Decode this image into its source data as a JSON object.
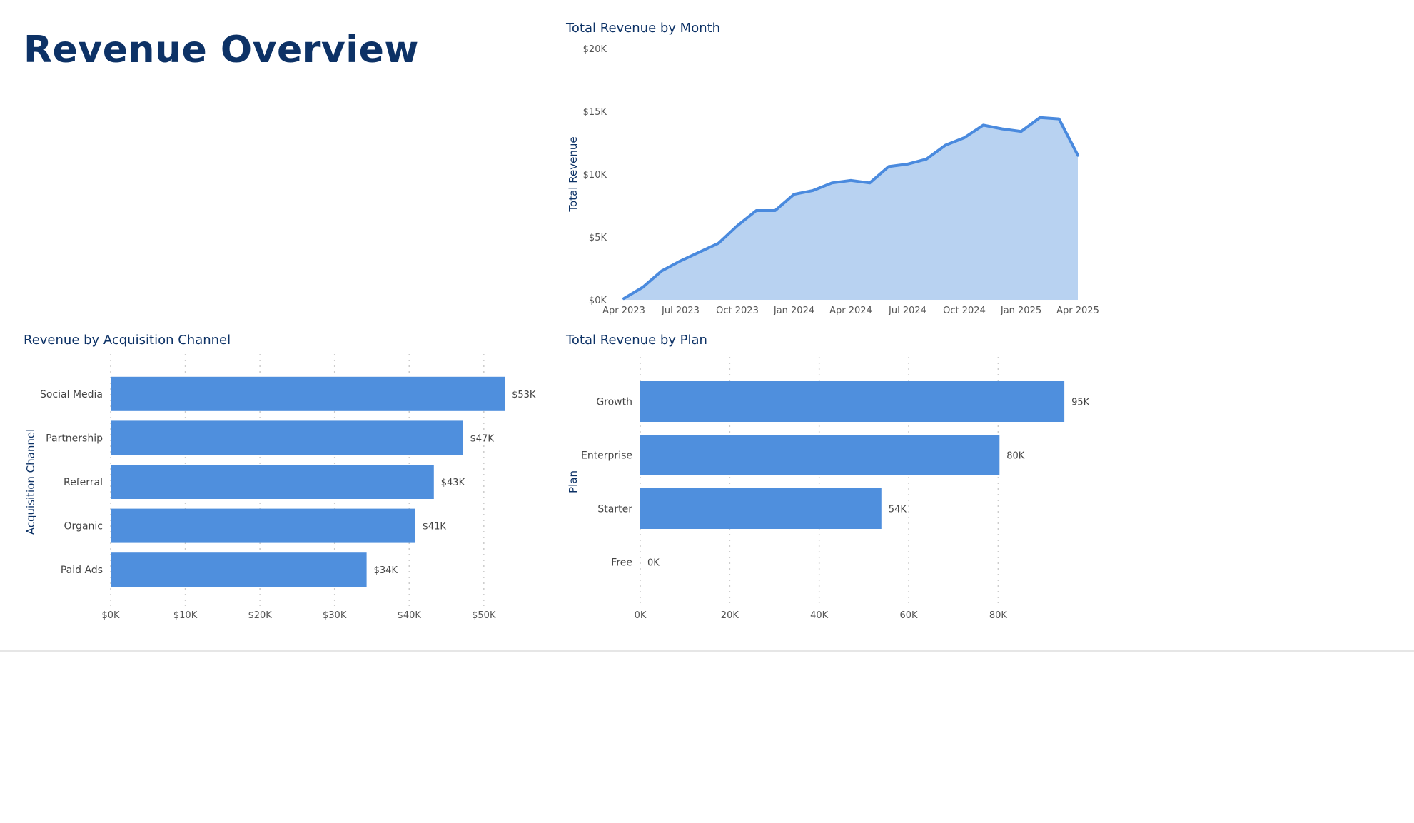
{
  "page": {
    "title": "Revenue Overview"
  },
  "colors": {
    "bar": "#4f8fdd",
    "line": "#4a8ade",
    "area": "#b8d2f1",
    "title": "#0d3266",
    "tick": "#555555",
    "grid": "#cccccc"
  },
  "chart_data": [
    {
      "id": "monthly",
      "type": "area",
      "title": "Total Revenue by Month",
      "xlabel": "",
      "ylabel": "Total Revenue",
      "ylim": [
        0,
        20000
      ],
      "y_ticks": [
        0,
        5000,
        10000,
        15000,
        20000
      ],
      "y_tick_labels": [
        "$0K",
        "$5K",
        "$10K",
        "$15K",
        "$20K"
      ],
      "x_tick_labels": [
        "Apr 2023",
        "Jul 2023",
        "Oct 2023",
        "Jan 2024",
        "Apr 2024",
        "Jul 2024",
        "Oct 2024",
        "Jan 2025",
        "Apr 2025"
      ],
      "x": [
        "Apr 2023",
        "May 2023",
        "Jun 2023",
        "Jul 2023",
        "Aug 2023",
        "Sep 2023",
        "Oct 2023",
        "Nov 2023",
        "Dec 2023",
        "Jan 2024",
        "Feb 2024",
        "Mar 2024",
        "Apr 2024",
        "May 2024",
        "Jun 2024",
        "Jul 2024",
        "Aug 2024",
        "Sep 2024",
        "Oct 2024",
        "Nov 2024",
        "Dec 2024",
        "Jan 2025",
        "Feb 2025",
        "Mar 2025",
        "Apr 2025"
      ],
      "values": [
        100,
        1000,
        2300,
        3100,
        3800,
        4500,
        5900,
        7100,
        7100,
        8400,
        8700,
        9300,
        9500,
        9300,
        10600,
        10800,
        11200,
        12300,
        12900,
        13900,
        13600,
        13400,
        14500,
        14400,
        11500
      ],
      "grid": false,
      "legend": "none"
    },
    {
      "id": "channel",
      "type": "bar",
      "orientation": "horizontal",
      "title": "Revenue by Acquisition Channel",
      "xlabel": "",
      "ylabel": "Acquisition Channel",
      "categories": [
        "Social Media",
        "Partnership",
        "Referral",
        "Organic",
        "Paid Ads"
      ],
      "values": [
        52800,
        47200,
        43300,
        40800,
        34300
      ],
      "value_labels": [
        "$53K",
        "$47K",
        "$43K",
        "$41K",
        "$34K"
      ],
      "xlim": [
        0,
        57000
      ],
      "x_ticks": [
        0,
        10000,
        20000,
        30000,
        40000,
        50000
      ],
      "x_tick_labels": [
        "$0K",
        "$10K",
        "$20K",
        "$30K",
        "$40K",
        "$50K"
      ],
      "grid": true,
      "legend": "none"
    },
    {
      "id": "plan",
      "type": "bar",
      "orientation": "horizontal",
      "title": "Total Revenue by Plan",
      "xlabel": "",
      "ylabel": "Plan",
      "categories": [
        "Growth",
        "Enterprise",
        "Starter",
        "Free"
      ],
      "values": [
        94800,
        80300,
        53900,
        0
      ],
      "value_labels": [
        "95K",
        "80K",
        "54K",
        "0K"
      ],
      "xlim": [
        0,
        101000
      ],
      "x_ticks": [
        0,
        20000,
        40000,
        60000,
        80000
      ],
      "x_tick_labels": [
        "0K",
        "20K",
        "40K",
        "60K",
        "80K"
      ],
      "grid": true,
      "legend": "none"
    }
  ]
}
